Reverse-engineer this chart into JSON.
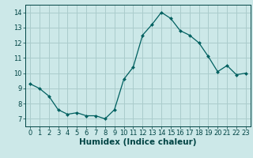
{
  "x": [
    0,
    1,
    2,
    3,
    4,
    5,
    6,
    7,
    8,
    9,
    10,
    11,
    12,
    13,
    14,
    15,
    16,
    17,
    18,
    19,
    20,
    21,
    22,
    23
  ],
  "y": [
    9.3,
    9.0,
    8.5,
    7.6,
    7.3,
    7.4,
    7.2,
    7.2,
    7.0,
    7.6,
    9.6,
    10.4,
    12.5,
    13.2,
    14.0,
    13.6,
    12.8,
    12.5,
    12.0,
    11.1,
    10.1,
    10.5,
    9.9,
    10.0
  ],
  "line_color": "#006060",
  "marker": "D",
  "marker_size": 2.0,
  "bg_color": "#cce8e8",
  "grid_color": "#aacccc",
  "xlabel": "Humidex (Indice chaleur)",
  "xlim": [
    -0.5,
    23.5
  ],
  "ylim": [
    6.5,
    14.5
  ],
  "yticks": [
    7,
    8,
    9,
    10,
    11,
    12,
    13,
    14
  ],
  "xticks": [
    0,
    1,
    2,
    3,
    4,
    5,
    6,
    7,
    8,
    9,
    10,
    11,
    12,
    13,
    14,
    15,
    16,
    17,
    18,
    19,
    20,
    21,
    22,
    23
  ],
  "title_color": "#004444",
  "tick_label_color": "#004444",
  "xlabel_fontsize": 7.5,
  "tick_fontsize": 6.0,
  "linewidth": 0.9
}
